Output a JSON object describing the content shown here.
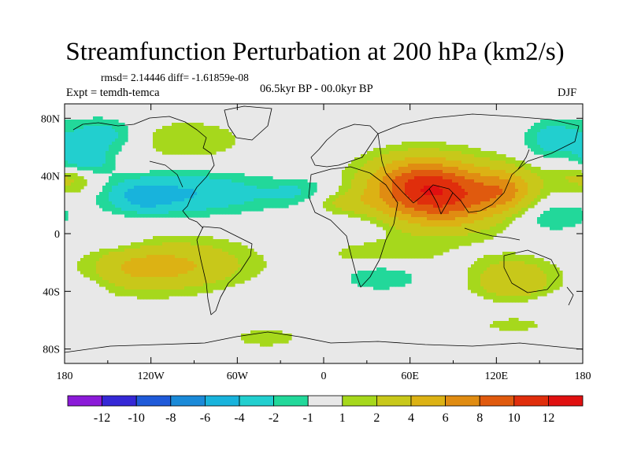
{
  "chart_data": {
    "type": "contour map",
    "title": "Streamfunction Perturbation at 200 hPa (km2/s)",
    "rmsd_label": "rmsd= 2.14446  diff= -1.61859e-08",
    "experiment_label": "Expt = temdh-temca",
    "period_label": "06.5kyr BP - 00.0kyr BP",
    "season": "DJF",
    "x_axis": {
      "range": [
        -180,
        180
      ],
      "ticks": [
        {
          "value": -180,
          "label": "180"
        },
        {
          "value": -120,
          "label": "120W"
        },
        {
          "value": -60,
          "label": "60W"
        },
        {
          "value": 0,
          "label": "0"
        },
        {
          "value": 60,
          "label": "60E"
        },
        {
          "value": 120,
          "label": "120E"
        },
        {
          "value": 180,
          "label": "180"
        }
      ]
    },
    "y_axis": {
      "range": [
        -90,
        90
      ],
      "ticks": [
        {
          "value": 80,
          "label": "80N"
        },
        {
          "value": 40,
          "label": "40N"
        },
        {
          "value": 0,
          "label": "0"
        },
        {
          "value": -40,
          "label": "40S"
        },
        {
          "value": -80,
          "label": "80S"
        }
      ]
    },
    "colorbar": {
      "labels": [
        "-12",
        "-10",
        "-8",
        "-6",
        "-4",
        "-2",
        "-1",
        "1",
        "2",
        "4",
        "6",
        "8",
        "10",
        "12"
      ],
      "levels": [
        -12,
        -10,
        -8,
        -6,
        -4,
        -2,
        -1,
        1,
        2,
        4,
        6,
        8,
        10,
        12
      ],
      "colors": [
        "#8b1ad8",
        "#3528d6",
        "#1f5ad9",
        "#1a8ad8",
        "#18b3dc",
        "#22cfcf",
        "#22d89a",
        "#e8e8e8",
        "#a6d81c",
        "#c8c81a",
        "#dcb214",
        "#e08c12",
        "#e05a0e",
        "#e02e0c",
        "#e01010"
      ]
    },
    "anomaly_centers": [
      {
        "lon": 82,
        "lat": 26,
        "lon_radius": 45,
        "lat_radius": 22,
        "value": 10
      },
      {
        "lon": 62,
        "lat": 38,
        "lon_radius": 35,
        "lat_radius": 18,
        "value": 4
      },
      {
        "lon": 128,
        "lat": 30,
        "lon_radius": 20,
        "lat_radius": 15,
        "value": 4
      },
      {
        "lon": -95,
        "lat": 65,
        "lon_radius": 40,
        "lat_radius": 14,
        "value": 2
      },
      {
        "lon": -100,
        "lat": -22,
        "lon_radius": 50,
        "lat_radius": 18,
        "value": 4
      },
      {
        "lon": -135,
        "lat": -25,
        "lon_radius": 30,
        "lat_radius": 15,
        "value": 2
      },
      {
        "lon": 40,
        "lat": -15,
        "lon_radius": 40,
        "lat_radius": 10,
        "value": 2
      },
      {
        "lon": 132,
        "lat": -32,
        "lon_radius": 28,
        "lat_radius": 15,
        "value": 4
      },
      {
        "lon": -170,
        "lat": 38,
        "lon_radius": 15,
        "lat_radius": 12,
        "value": 2
      },
      {
        "lon": 172,
        "lat": 40,
        "lon_radius": 20,
        "lat_radius": 12,
        "value": 2
      },
      {
        "lon": 10,
        "lat": 22,
        "lon_radius": 25,
        "lat_radius": 8,
        "value": 2
      },
      {
        "lon": -155,
        "lat": 68,
        "lon_radius": 25,
        "lat_radius": 12,
        "value": -3
      },
      {
        "lon": -168,
        "lat": 50,
        "lon_radius": 18,
        "lat_radius": 10,
        "value": -4
      },
      {
        "lon": -95,
        "lat": 28,
        "lon_radius": 55,
        "lat_radius": 14,
        "value": -4
      },
      {
        "lon": -125,
        "lat": 25,
        "lon_radius": 20,
        "lat_radius": 10,
        "value": -3
      },
      {
        "lon": -15,
        "lat": 28,
        "lon_radius": 25,
        "lat_radius": 10,
        "value": -2
      },
      {
        "lon": 160,
        "lat": 65,
        "lon_radius": 20,
        "lat_radius": 14,
        "value": -3
      },
      {
        "lon": 155,
        "lat": 12,
        "lon_radius": 32,
        "lat_radius": 12,
        "value": -2
      },
      {
        "lon": -145,
        "lat": -6,
        "lon_radius": 25,
        "lat_radius": 6,
        "value": -1
      },
      {
        "lon": 20,
        "lat": 4,
        "lon_radius": 30,
        "lat_radius": 8,
        "value": -1
      },
      {
        "lon": 40,
        "lat": -28,
        "lon_radius": 30,
        "lat_radius": 12,
        "value": -2
      },
      {
        "lon": -40,
        "lat": -45,
        "lon_radius": 35,
        "lat_radius": 10,
        "value": -1
      },
      {
        "lon": -165,
        "lat": -38,
        "lon_radius": 12,
        "lat_radius": 8,
        "value": -1
      },
      {
        "lon": -40,
        "lat": -72,
        "lon_radius": 28,
        "lat_radius": 8,
        "value": 1.5
      },
      {
        "lon": 90,
        "lat": -55,
        "lon_radius": 60,
        "lat_radius": 8,
        "value": -1
      },
      {
        "lon": 130,
        "lat": -62,
        "lon_radius": 35,
        "lat_radius": 8,
        "value": 1.5
      },
      {
        "lon": 162,
        "lat": -50,
        "lon_radius": 20,
        "lat_radius": 8,
        "value": -1
      }
    ]
  }
}
